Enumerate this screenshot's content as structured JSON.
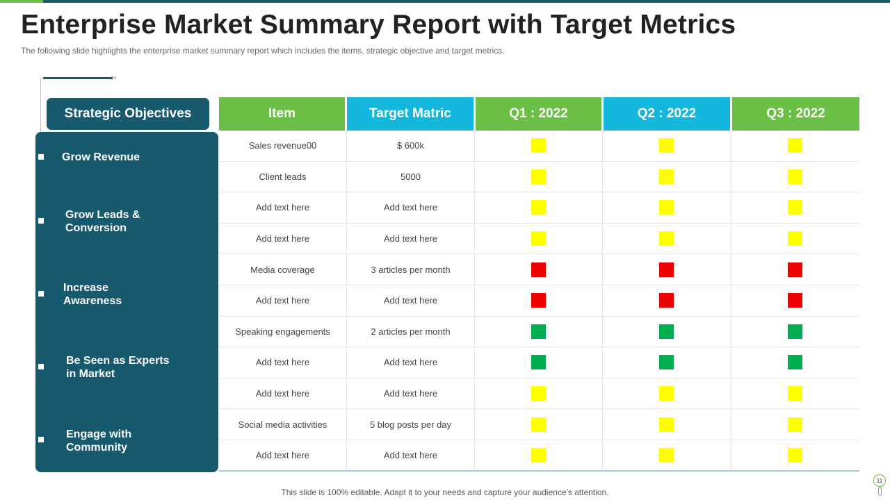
{
  "header": {
    "title": "Enterprise Market Summary Report with Target Metrics",
    "subtitle": "The following  slide highlights the enterprise  market summary report which includes the items, strategic objective  and target metrics."
  },
  "objectives": {
    "header": "Strategic Objectives",
    "items": [
      "Grow Revenue",
      "Grow Leads &\nConversion",
      "Increase\nAwareness",
      "Be Seen as Experts\nin Market",
      "Engage with\nCommunity"
    ]
  },
  "table": {
    "columns": [
      "Item",
      "Target Matric",
      "Q1 : 2022",
      "Q2 : 2022",
      "Q3 : 2022"
    ],
    "rows": [
      {
        "item": "Sales revenue00",
        "target": "$ 600k",
        "status": [
          "yellow",
          "yellow",
          "yellow"
        ]
      },
      {
        "item": "Client  leads",
        "target": "5000",
        "status": [
          "yellow",
          "yellow",
          "yellow"
        ]
      },
      {
        "item": "Add text here",
        "target": "Add text here",
        "status": [
          "yellow",
          "yellow",
          "yellow"
        ]
      },
      {
        "item": "Add text here",
        "target": "Add text here",
        "status": [
          "yellow",
          "yellow",
          "yellow"
        ]
      },
      {
        "item": "Media coverage",
        "target": "3 articles per month",
        "status": [
          "red",
          "red",
          "red"
        ]
      },
      {
        "item": "Add text here",
        "target": "Add text here",
        "status": [
          "red",
          "red",
          "red"
        ]
      },
      {
        "item": "Speaking engagements",
        "target": "2 articles per month",
        "status": [
          "green",
          "green",
          "green"
        ]
      },
      {
        "item": "Add text here",
        "target": "Add text here",
        "status": [
          "green",
          "green",
          "green"
        ]
      },
      {
        "item": "Add text here",
        "target": "Add text here",
        "status": [
          "yellow",
          "yellow",
          "yellow"
        ]
      },
      {
        "item": "Social media activities",
        "target": "5 blog posts per day",
        "status": [
          "yellow",
          "yellow",
          "yellow"
        ]
      },
      {
        "item": "Add text here",
        "target": "Add text here",
        "status": [
          "yellow",
          "yellow",
          "yellow"
        ]
      }
    ]
  },
  "colors": {
    "yellow": "#ffff00",
    "red": "#ee0000",
    "green": "#00b050",
    "teal": "#175a6e",
    "header_green": "#6bbf44",
    "header_cyan": "#13b6dc"
  },
  "footer": {
    "note": "This slide is 100% editable. Adapt it to your needs and capture your audience's attention.",
    "page_number": "11"
  }
}
